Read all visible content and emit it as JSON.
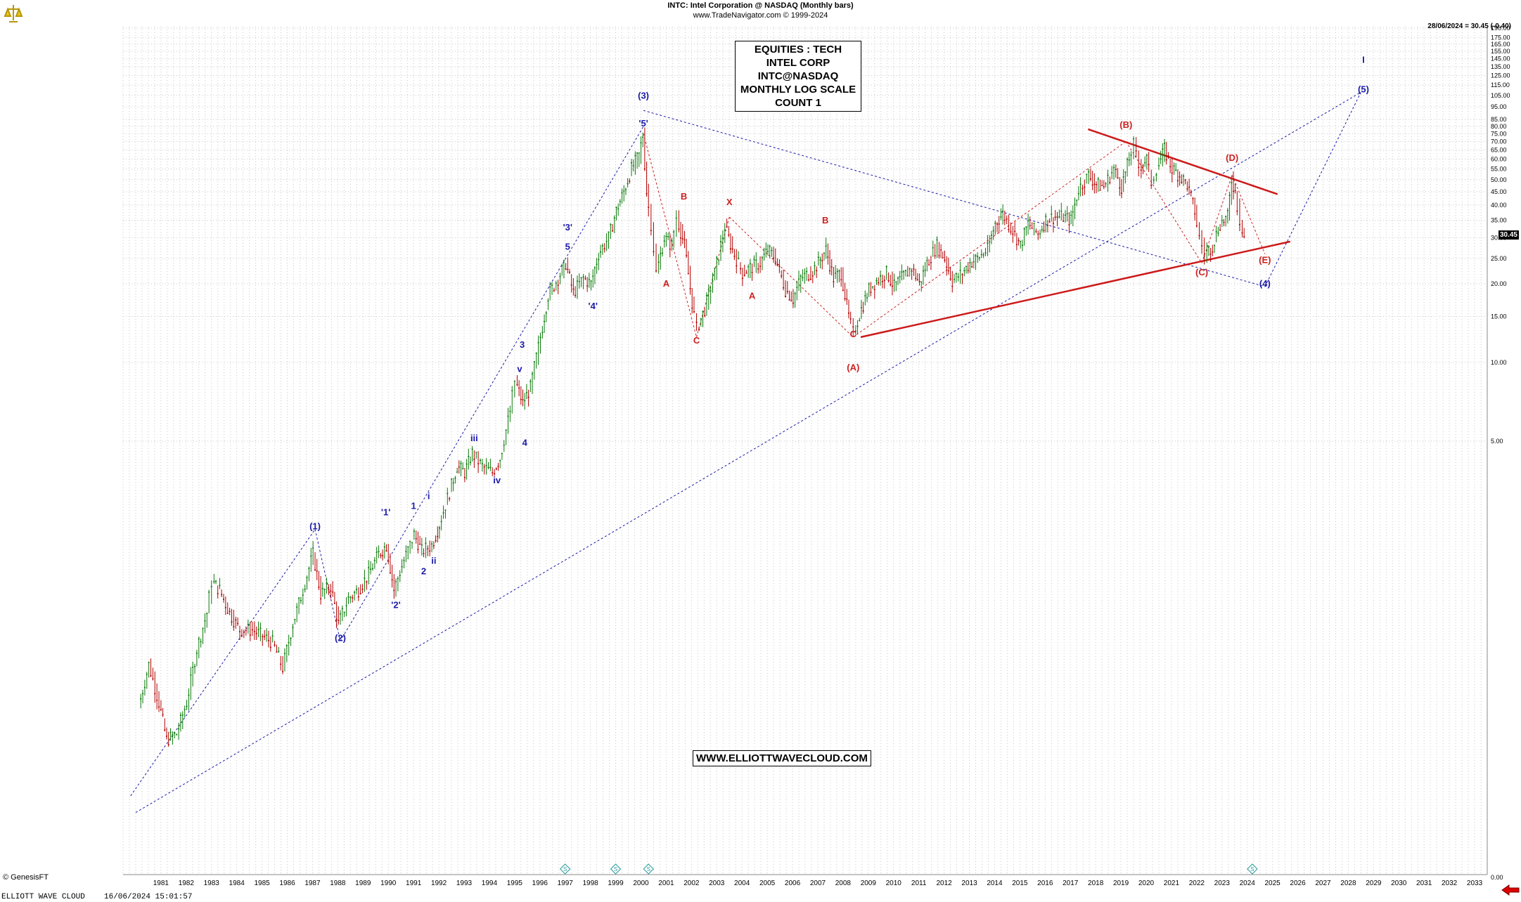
{
  "header": {
    "title": "INTC:  Intel Corporation @ NASDAQ  (Monthly bars)",
    "subtitle": "www.TradeNavigator.com © 1999-2024",
    "last_quote": "28/06/2024 = 30.45 (-0.40)"
  },
  "info_box": [
    "EQUITIES : TECH",
    "INTEL CORP",
    "INTC@NASDAQ",
    "MONTHLY LOG SCALE",
    "COUNT 1"
  ],
  "url_label": "WWW.ELLIOTTWAVECLOUD.COM",
  "footer": {
    "copyright": "© GenesisFT",
    "left": "ELLIOTT WAVE CLOUD",
    "date": "16/06/2024 15:01:57"
  },
  "last_price_label": "30.45",
  "colors": {
    "bullish": "#0a7a0a",
    "bearish": "#b30000",
    "wave_blue": "#1a1aa8",
    "wave_red": "#cc2020",
    "grid": "#c8c8c8",
    "background": "#ffffff",
    "logo": "#d4b000"
  },
  "icons": {
    "logo": "bull-logo-icon",
    "marker": "diamond-s-marker-icon",
    "arrow": "red-arrow-left-icon"
  },
  "chart_data": {
    "type": "candlestick",
    "scale": "log",
    "grid": true,
    "ylim": [
      0,
      190
    ],
    "xlim": [
      "1980-01",
      "2033-12"
    ],
    "y_ticks": [
      5,
      10,
      15,
      20,
      25,
      30,
      35,
      40,
      45,
      50,
      55,
      60,
      65,
      70,
      75,
      80,
      85,
      95,
      105,
      115,
      125,
      135,
      145,
      155,
      165,
      175,
      190
    ],
    "y_tick_labels": [
      "5.00",
      "10.00",
      "15.00",
      "20.00",
      "25.00",
      "30.00",
      "35.00",
      "40.00",
      "45.00",
      "50.00",
      "55.00",
      "60.00",
      "65.00",
      "70.00",
      "75.00",
      "80.00",
      "85.00",
      "95.00",
      "105.00",
      "115.00",
      "125.00",
      "135.00",
      "145.00",
      "155.00",
      "165.00",
      "175.00",
      "190.00"
    ],
    "y_zero_label": "0.00",
    "x_ticks": [
      "1981",
      "1982",
      "1983",
      "1984",
      "1985",
      "1986",
      "1987",
      "1988",
      "1989",
      "1990",
      "1991",
      "1992",
      "1993",
      "1994",
      "1995",
      "1996",
      "1997",
      "1998",
      "1999",
      "2000",
      "2001",
      "2002",
      "2003",
      "2004",
      "2005",
      "2006",
      "2007",
      "2008",
      "2009",
      "2010",
      "2011",
      "2012",
      "2013",
      "2014",
      "2015",
      "2016",
      "2017",
      "2018",
      "2019",
      "2020",
      "2021",
      "2022",
      "2023",
      "2024",
      "2025",
      "2026",
      "2027",
      "2028",
      "2029",
      "2030",
      "2031",
      "2032",
      "2033"
    ],
    "price_path": [
      [
        1980.7,
        0.48
      ],
      [
        1981.1,
        0.7
      ],
      [
        1981.5,
        0.5
      ],
      [
        1981.8,
        0.36
      ],
      [
        1982.2,
        0.38
      ],
      [
        1982.6,
        0.5
      ],
      [
        1983.0,
        0.8
      ],
      [
        1983.4,
        1.1
      ],
      [
        1983.6,
        1.45
      ],
      [
        1983.9,
        1.35
      ],
      [
        1984.3,
        1.1
      ],
      [
        1984.7,
        0.95
      ],
      [
        1985.2,
        0.95
      ],
      [
        1985.6,
        0.9
      ],
      [
        1986.0,
        0.85
      ],
      [
        1986.4,
        0.68
      ],
      [
        1986.8,
        1.0
      ],
      [
        1987.2,
        1.35
      ],
      [
        1987.6,
        1.85
      ],
      [
        1987.9,
        1.3
      ],
      [
        1988.3,
        1.4
      ],
      [
        1988.6,
        1.0
      ],
      [
        1989.0,
        1.25
      ],
      [
        1989.4,
        1.35
      ],
      [
        1989.8,
        1.55
      ],
      [
        1990.2,
        1.85
      ],
      [
        1990.5,
        2.0
      ],
      [
        1990.8,
        1.35
      ],
      [
        1991.2,
        1.75
      ],
      [
        1991.6,
        2.2
      ],
      [
        1991.9,
        1.9
      ],
      [
        1992.3,
        2.0
      ],
      [
        1992.6,
        2.4
      ],
      [
        1993.0,
        3.2
      ],
      [
        1993.3,
        4.0
      ],
      [
        1993.6,
        3.8
      ],
      [
        1993.9,
        4.5
      ],
      [
        1994.3,
        4.0
      ],
      [
        1994.7,
        3.8
      ],
      [
        1995.0,
        4.3
      ],
      [
        1995.4,
        6.5
      ],
      [
        1995.6,
        8.5
      ],
      [
        1995.9,
        7.0
      ],
      [
        1996.2,
        8.0
      ],
      [
        1996.6,
        12.5
      ],
      [
        1996.9,
        18.0
      ],
      [
        1997.3,
        21.0
      ],
      [
        1997.6,
        24.0
      ],
      [
        1997.9,
        18.5
      ],
      [
        1998.3,
        21.0
      ],
      [
        1998.6,
        20.0
      ],
      [
        1998.9,
        26.0
      ],
      [
        1999.3,
        30.0
      ],
      [
        1999.6,
        38.0
      ],
      [
        1999.9,
        45.0
      ],
      [
        2000.2,
        55.0
      ],
      [
        2000.5,
        62.0
      ],
      [
        2000.65,
        74.0
      ],
      [
        2000.8,
        45.0
      ],
      [
        2001.0,
        34.0
      ],
      [
        2001.2,
        22.0
      ],
      [
        2001.5,
        30.0
      ],
      [
        2001.8,
        28.0
      ],
      [
        2002.0,
        36.0
      ],
      [
        2002.3,
        28.0
      ],
      [
        2002.6,
        17.0
      ],
      [
        2002.8,
        13.5
      ],
      [
        2003.1,
        16.0
      ],
      [
        2003.5,
        22.0
      ],
      [
        2003.9,
        33.0
      ],
      [
        2004.2,
        27.0
      ],
      [
        2004.6,
        22.0
      ],
      [
        2004.9,
        23.0
      ],
      [
        2005.3,
        24.0
      ],
      [
        2005.6,
        27.0
      ],
      [
        2005.9,
        25.0
      ],
      [
        2006.3,
        19.0
      ],
      [
        2006.6,
        17.5
      ],
      [
        2006.9,
        21.0
      ],
      [
        2007.3,
        22.0
      ],
      [
        2007.6,
        24.0
      ],
      [
        2007.9,
        27.0
      ],
      [
        2008.2,
        21.0
      ],
      [
        2008.5,
        22.0
      ],
      [
        2008.8,
        15.0
      ],
      [
        2009.0,
        13.0
      ],
      [
        2009.3,
        16.0
      ],
      [
        2009.6,
        19.0
      ],
      [
        2009.9,
        20.5
      ],
      [
        2010.3,
        22.0
      ],
      [
        2010.6,
        19.5
      ],
      [
        2010.9,
        21.0
      ],
      [
        2011.3,
        23.0
      ],
      [
        2011.6,
        20.0
      ],
      [
        2011.9,
        24.0
      ],
      [
        2012.3,
        28.0
      ],
      [
        2012.6,
        25.0
      ],
      [
        2012.9,
        20.5
      ],
      [
        2013.3,
        22.0
      ],
      [
        2013.6,
        24.0
      ],
      [
        2013.9,
        25.0
      ],
      [
        2014.3,
        27.0
      ],
      [
        2014.6,
        34.0
      ],
      [
        2014.9,
        37.0
      ],
      [
        2015.3,
        32.0
      ],
      [
        2015.6,
        28.0
      ],
      [
        2015.9,
        34.0
      ],
      [
        2016.3,
        31.0
      ],
      [
        2016.6,
        35.0
      ],
      [
        2016.9,
        36.0
      ],
      [
        2017.3,
        36.0
      ],
      [
        2017.6,
        35.0
      ],
      [
        2017.9,
        46.0
      ],
      [
        2018.3,
        52.0
      ],
      [
        2018.6,
        48.0
      ],
      [
        2018.9,
        47.0
      ],
      [
        2019.3,
        55.0
      ],
      [
        2019.6,
        47.0
      ],
      [
        2019.9,
        60.0
      ],
      [
        2020.1,
        68.0
      ],
      [
        2020.3,
        56.0
      ],
      [
        2020.6,
        60.0
      ],
      [
        2020.8,
        49.0
      ],
      [
        2021.0,
        55.0
      ],
      [
        2021.3,
        65.0
      ],
      [
        2021.6,
        55.0
      ],
      [
        2021.9,
        52.0
      ],
      [
        2022.2,
        48.0
      ],
      [
        2022.5,
        38.0
      ],
      [
        2022.7,
        30.0
      ],
      [
        2022.9,
        26.0
      ],
      [
        2023.2,
        28.0
      ],
      [
        2023.5,
        34.0
      ],
      [
        2023.8,
        36.0
      ],
      [
        2023.95,
        50.0
      ],
      [
        2024.1,
        45.0
      ],
      [
        2024.3,
        35.0
      ],
      [
        2024.45,
        30.45
      ]
    ],
    "annotations_blue": [
      {
        "label": "(1)",
        "x": 1987.6,
        "y": 2.3
      },
      {
        "label": "(2)",
        "x": 1988.6,
        "y": 0.86
      },
      {
        "label": "'1'",
        "x": 1990.4,
        "y": 2.6
      },
      {
        "label": "'2'",
        "x": 1990.8,
        "y": 1.15
      },
      {
        "label": "1",
        "x": 1991.5,
        "y": 2.75
      },
      {
        "label": "2",
        "x": 1991.9,
        "y": 1.55
      },
      {
        "label": "i",
        "x": 1992.1,
        "y": 3.0
      },
      {
        "label": "ii",
        "x": 1992.3,
        "y": 1.7
      },
      {
        "label": "iii",
        "x": 1993.9,
        "y": 5.0
      },
      {
        "label": "iv",
        "x": 1994.8,
        "y": 3.45
      },
      {
        "label": "v",
        "x": 1995.7,
        "y": 9.2
      },
      {
        "label": "3",
        "x": 1995.8,
        "y": 11.4
      },
      {
        "label": "4",
        "x": 1995.9,
        "y": 4.8
      },
      {
        "label": "5",
        "x": 1997.6,
        "y": 27.0
      },
      {
        "label": "'3'",
        "x": 1997.6,
        "y": 32.0
      },
      {
        "label": "'4'",
        "x": 1998.6,
        "y": 16.0
      },
      {
        "label": "'5'",
        "x": 2000.6,
        "y": 80.0
      },
      {
        "label": "(3)",
        "x": 2000.6,
        "y": 102.0
      },
      {
        "label": "(4)",
        "x": 2025.2,
        "y": 19.5
      },
      {
        "label": "(5)",
        "x": 2029.1,
        "y": 108.0
      },
      {
        "label": "I",
        "x": 2029.1,
        "y": 140.0
      }
    ],
    "annotations_red": [
      {
        "label": "A",
        "x": 2001.5,
        "y": 19.5
      },
      {
        "label": "B",
        "x": 2002.2,
        "y": 42.0
      },
      {
        "label": "C",
        "x": 2002.7,
        "y": 11.8
      },
      {
        "label": "X",
        "x": 2004.0,
        "y": 40.0
      },
      {
        "label": "A",
        "x": 2004.9,
        "y": 17.5
      },
      {
        "label": "B",
        "x": 2007.8,
        "y": 34.0
      },
      {
        "label": "C",
        "x": 2008.9,
        "y": 12.5
      },
      {
        "label": "(A)",
        "x": 2008.9,
        "y": 9.3
      },
      {
        "label": "(B)",
        "x": 2019.7,
        "y": 79.0
      },
      {
        "label": "(C)",
        "x": 2022.7,
        "y": 21.5
      },
      {
        "label": "(D)",
        "x": 2023.9,
        "y": 59.0
      },
      {
        "label": "(E)",
        "x": 2025.2,
        "y": 24.0
      }
    ],
    "markers_x": [
      1997.5,
      1999.5,
      2000.8,
      2024.7
    ],
    "marker_label": "S"
  }
}
